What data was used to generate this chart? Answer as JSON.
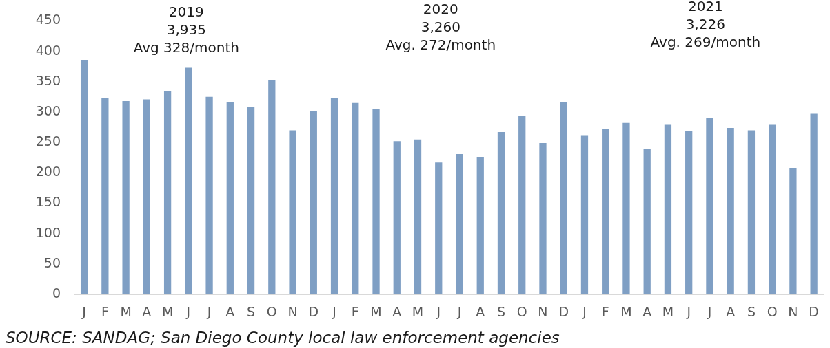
{
  "chart_data": {
    "type": "bar",
    "categories": [
      "J",
      "F",
      "M",
      "A",
      "M",
      "J",
      "J",
      "A",
      "S",
      "O",
      "N",
      "D",
      "J",
      "F",
      "M",
      "A",
      "M",
      "J",
      "J",
      "A",
      "S",
      "O",
      "N",
      "D",
      "J",
      "F",
      "M",
      "A",
      "M",
      "J",
      "J",
      "A",
      "S",
      "O",
      "N",
      "D"
    ],
    "values": [
      386,
      323,
      318,
      321,
      335,
      373,
      325,
      317,
      309,
      352,
      270,
      302,
      323,
      315,
      305,
      252,
      255,
      217,
      231,
      226,
      267,
      294,
      249,
      317,
      261,
      272,
      282,
      239,
      279,
      269,
      290,
      274,
      270,
      279,
      207,
      297
    ],
    "color": "#7f9fc4",
    "ylim": [
      0,
      450
    ],
    "yticks": [
      0,
      50,
      100,
      150,
      200,
      250,
      300,
      350,
      400,
      450
    ],
    "annotations": [
      "2019\n3,935\nAvg 328/month",
      "2020\n3,260\nAvg. 272/month",
      "2021\n3,226\nAvg. 269/month",
      "SOURCE: SANDAG; San Diego County local law enforcement agencies"
    ]
  }
}
